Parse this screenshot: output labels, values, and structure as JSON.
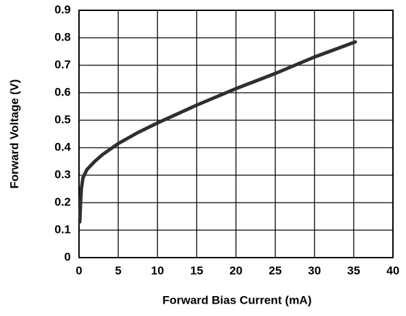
{
  "chart_data": {
    "type": "line",
    "x_label": "Forward Bias Current (mA)",
    "y_label": "Forward Voltage (V)",
    "x": [
      0.1,
      0.2,
      0.3,
      0.5,
      1,
      2,
      3,
      5,
      7.5,
      10,
      15,
      20,
      25,
      30,
      35.2
    ],
    "values": [
      0.13,
      0.2,
      0.25,
      0.29,
      0.32,
      0.35,
      0.375,
      0.415,
      0.455,
      0.49,
      0.555,
      0.615,
      0.67,
      0.73,
      0.785
    ],
    "color": "#2f2f2f",
    "xlim": [
      0,
      40
    ],
    "xticks": [
      0,
      5,
      10,
      15,
      20,
      25,
      30,
      35,
      40
    ],
    "ylim": [
      0,
      0.9
    ],
    "yticks": [
      0,
      0.1,
      0.2,
      0.3,
      0.4,
      0.5,
      0.6,
      0.7,
      0.8,
      0.9
    ],
    "grid": true
  }
}
